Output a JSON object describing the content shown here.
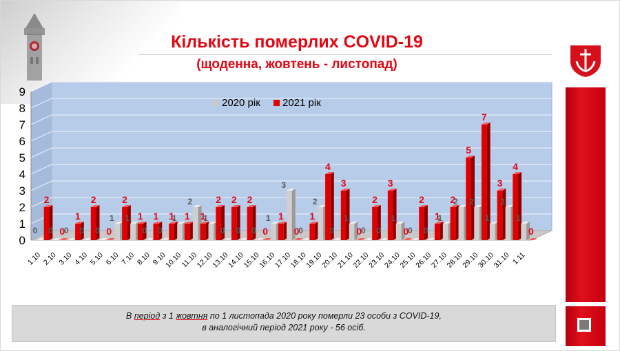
{
  "slide": {
    "title": "Кількість померлих COVID-19",
    "subtitle": "(щоденна, жовтень - листопад)",
    "footer_line1_a": "В ",
    "footer_line1_b": "період",
    "footer_line1_c": " з 1 ",
    "footer_line1_d": "жовтня",
    "footer_line1_e": " по 1 листопада 2020 року померли 23 особи з COVID-19,",
    "footer_line2": "в аналогічний період 2021 року - 56 осіб."
  },
  "colors": {
    "accent_red": "#e30613",
    "series_2020": "#c8c8c8",
    "series_2021": "#e00000",
    "plot_bg": "#b7cce8"
  },
  "icons": [
    "city-tower-emblem",
    "city-coat-of-arms-icon",
    "stop-icon"
  ],
  "chart_data": {
    "type": "bar",
    "ylim": [
      0,
      9
    ],
    "yticks": [
      "0",
      "1",
      "2",
      "3",
      "4",
      "5",
      "6",
      "7",
      "8",
      "9"
    ],
    "legend_position": "top-center",
    "grid": true,
    "categories": [
      "1.10",
      "2.10",
      "3.10",
      "4.10",
      "5.10",
      "6.10",
      "7.10",
      "8.10",
      "9.10",
      "10.10",
      "11.10",
      "12.10",
      "13.10",
      "14.10",
      "15.10",
      "16.10",
      "17.10",
      "18.10",
      "19.10",
      "20.10",
      "21.10",
      "22.10",
      "23.10",
      "24.10",
      "25.10",
      "26.10",
      "27.10",
      "28.10",
      "29.10",
      "30.10",
      "31.10",
      "1.11"
    ],
    "series": [
      {
        "name": "2020 рік",
        "values": [
          0,
          0,
          0,
          0,
          0,
          1,
          1,
          0,
          0,
          1,
          2,
          1,
          0,
          0,
          0,
          1,
          3,
          0,
          2,
          0,
          1,
          0,
          0,
          1,
          0,
          0,
          1,
          2,
          2,
          1,
          2,
          1
        ]
      },
      {
        "name": "2021 рік",
        "values": [
          2,
          0,
          1,
          2,
          0,
          2,
          1,
          1,
          1,
          1,
          1,
          2,
          2,
          2,
          0,
          1,
          0,
          1,
          4,
          3,
          0,
          2,
          3,
          0,
          2,
          1,
          2,
          5,
          7,
          3,
          4,
          0
        ]
      }
    ]
  }
}
